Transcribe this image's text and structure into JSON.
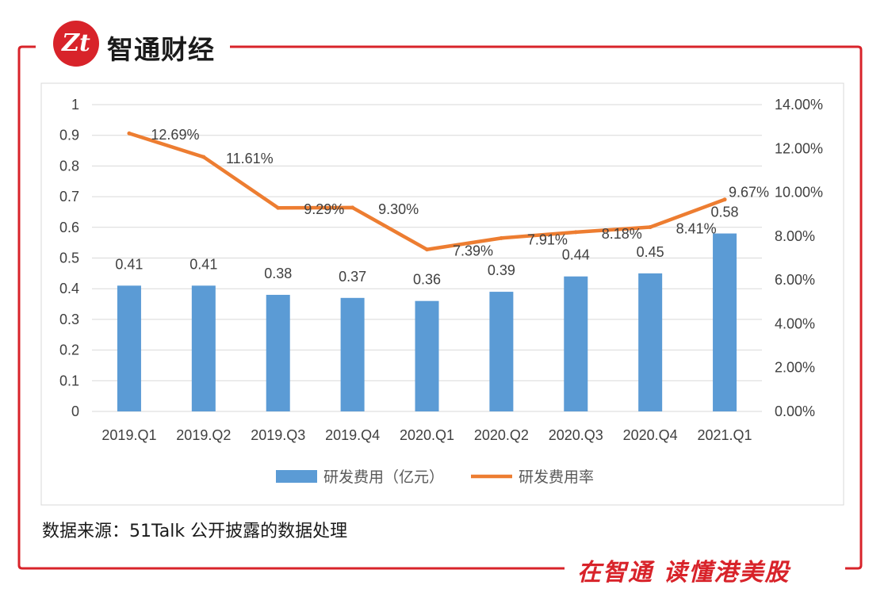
{
  "brand": {
    "logo_text": "Zt",
    "name": "智通财经",
    "slogan": "在智通 读懂港美股",
    "color": "#d8232a"
  },
  "source_note": "数据来源：51Talk 公开披露的数据处理",
  "colors": {
    "bar": "#5b9bd5",
    "line": "#ed7d31",
    "grid": "#d9d9d9",
    "frame": "#d8232a"
  },
  "chart_data": {
    "type": "bar",
    "categories": [
      "2019.Q1",
      "2019.Q2",
      "2019.Q3",
      "2019.Q4",
      "2020.Q1",
      "2020.Q2",
      "2020.Q3",
      "2020.Q4",
      "2021.Q1"
    ],
    "series": [
      {
        "name": "研发费用（亿元）",
        "type": "bar",
        "axis": "left",
        "values": [
          0.41,
          0.41,
          0.38,
          0.37,
          0.36,
          0.39,
          0.44,
          0.45,
          0.58
        ],
        "labels": [
          "0.41",
          "0.41",
          "0.38",
          "0.37",
          "0.36",
          "0.39",
          "0.44",
          "0.45",
          "0.58"
        ]
      },
      {
        "name": "研发费用率",
        "type": "line",
        "axis": "right",
        "values": [
          12.69,
          11.61,
          9.29,
          9.3,
          7.39,
          7.91,
          8.18,
          8.41,
          9.67
        ],
        "labels": [
          "12.69%",
          "11.61%",
          "9.29%",
          "9.30%",
          "7.39%",
          "7.91%",
          "8.18%",
          "8.41%",
          "9.67%"
        ]
      }
    ],
    "y_left": {
      "ylim": [
        0,
        1
      ],
      "ticks": [
        0,
        0.1,
        0.2,
        0.3,
        0.4,
        0.5,
        0.6,
        0.7,
        0.8,
        0.9,
        1
      ],
      "tick_labels": [
        "0",
        "0.1",
        "0.2",
        "0.3",
        "0.4",
        "0.5",
        "0.6",
        "0.7",
        "0.8",
        "0.9",
        "1"
      ]
    },
    "y_right": {
      "ylim": [
        0,
        14
      ],
      "ticks": [
        0,
        2,
        4,
        6,
        8,
        10,
        12,
        14
      ],
      "tick_labels": [
        "0.00%",
        "2.00%",
        "4.00%",
        "6.00%",
        "8.00%",
        "10.00%",
        "12.00%",
        "14.00%"
      ]
    },
    "grid": true,
    "legend_position": "bottom"
  }
}
